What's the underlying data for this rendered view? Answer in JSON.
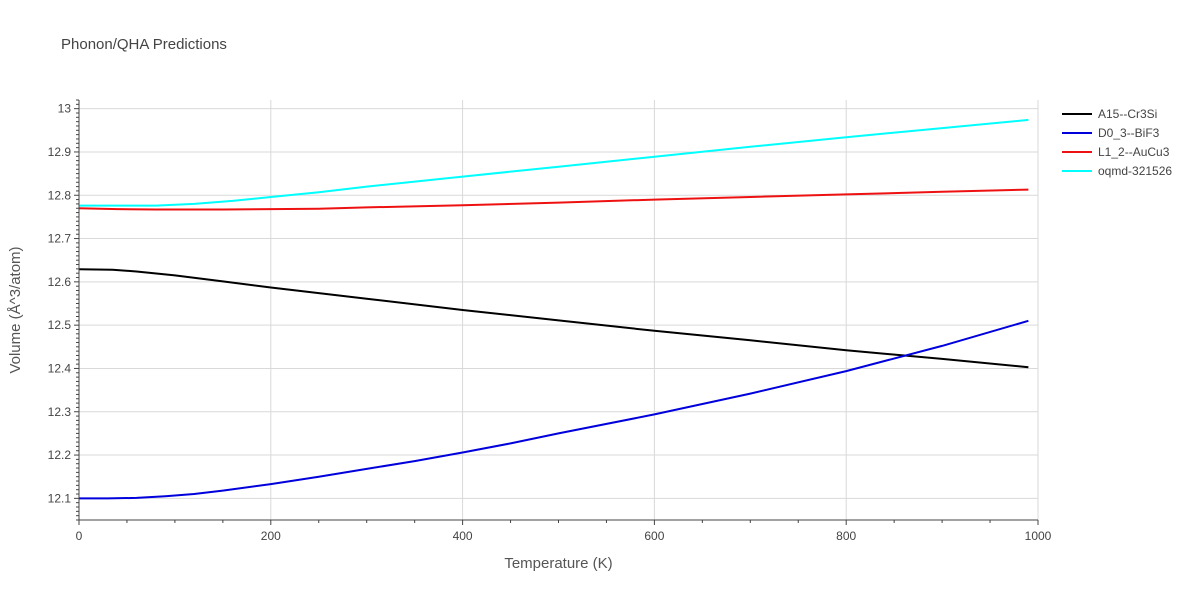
{
  "chart_data": {
    "type": "line",
    "title": "Phonon/QHA Predictions",
    "xlabel": "Temperature (K)",
    "ylabel": "Volume (Å^3/atom)",
    "xlim": [
      0,
      1000
    ],
    "ylim": [
      12.05,
      13.02
    ],
    "xticks": [
      0,
      200,
      400,
      600,
      800,
      1000
    ],
    "yticks": [
      12.1,
      12.2,
      12.3,
      12.4,
      12.5,
      12.6,
      12.7,
      12.8,
      12.9,
      13
    ],
    "grid": true,
    "legend_position": "top-right",
    "series": [
      {
        "name": "A15--Cr3Si",
        "color": "#000000",
        "x": [
          0,
          35,
          60,
          100,
          150,
          200,
          250,
          300,
          400,
          500,
          600,
          700,
          800,
          900,
          990
        ],
        "y": [
          12.629,
          12.628,
          12.624,
          12.615,
          12.601,
          12.587,
          12.574,
          12.561,
          12.535,
          12.511,
          12.487,
          12.465,
          12.442,
          12.422,
          12.403
        ]
      },
      {
        "name": "D0_3--BiF3",
        "color": "#0000dd",
        "x": [
          0,
          30,
          60,
          90,
          120,
          150,
          200,
          250,
          300,
          350,
          400,
          450,
          500,
          600,
          700,
          800,
          900,
          990
        ],
        "y": [
          12.1,
          12.1,
          12.101,
          12.105,
          12.11,
          12.118,
          12.133,
          12.15,
          12.168,
          12.186,
          12.206,
          12.227,
          12.25,
          12.294,
          12.342,
          12.394,
          12.452,
          12.51
        ]
      },
      {
        "name": "L1_2--AuCu3",
        "color": "#ee1111",
        "x": [
          0,
          40,
          80,
          150,
          200,
          250,
          300,
          400,
          500,
          600,
          700,
          800,
          900,
          990
        ],
        "y": [
          12.77,
          12.768,
          12.767,
          12.767,
          12.768,
          12.769,
          12.772,
          12.777,
          12.783,
          12.79,
          12.796,
          12.802,
          12.808,
          12.813
        ]
      },
      {
        "name": "oqmd-321526",
        "color": "#00ffff",
        "x": [
          0,
          40,
          80,
          120,
          160,
          200,
          250,
          300,
          400,
          500,
          600,
          700,
          800,
          900,
          990
        ],
        "y": [
          12.776,
          12.776,
          12.776,
          12.78,
          12.787,
          12.796,
          12.807,
          12.82,
          12.843,
          12.866,
          12.889,
          12.912,
          12.934,
          12.955,
          12.974
        ]
      }
    ]
  }
}
